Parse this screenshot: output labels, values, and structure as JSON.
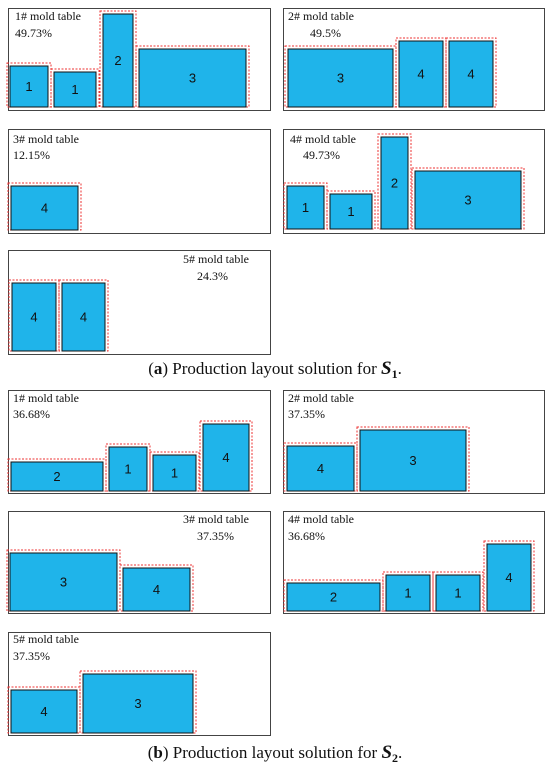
{
  "sections": [
    {
      "panels": [
        {
          "title": "1# mold table",
          "percent": "49.73%",
          "blocks": [
            {
              "label": "1"
            },
            {
              "label": "1"
            },
            {
              "label": "2"
            },
            {
              "label": "3"
            }
          ]
        },
        {
          "title": "2# mold table",
          "percent": "49.5%",
          "blocks": [
            {
              "label": "3"
            },
            {
              "label": "4"
            },
            {
              "label": "4"
            }
          ]
        },
        {
          "title": "3# mold table",
          "percent": "12.15%",
          "blocks": [
            {
              "label": "4"
            }
          ]
        },
        {
          "title": "4# mold table",
          "percent": "49.73%",
          "blocks": [
            {
              "label": "1"
            },
            {
              "label": "1"
            },
            {
              "label": "2"
            },
            {
              "label": "3"
            }
          ]
        },
        {
          "title": "5# mold table",
          "percent": "24.3%",
          "blocks": [
            {
              "label": "4"
            },
            {
              "label": "4"
            }
          ]
        }
      ],
      "caption": [
        "(",
        "a",
        ") Production layout solution for ",
        "S",
        "1",
        "."
      ]
    },
    {
      "panels": [
        {
          "title": "1# mold table",
          "percent": "36.68%",
          "blocks": [
            {
              "label": "2"
            },
            {
              "label": "1"
            },
            {
              "label": "1"
            },
            {
              "label": "4"
            }
          ]
        },
        {
          "title": "2# mold table",
          "percent": "37.35%",
          "blocks": [
            {
              "label": "4"
            },
            {
              "label": "3"
            }
          ]
        },
        {
          "title": "3# mold table",
          "percent": "37.35%",
          "blocks": [
            {
              "label": "3"
            },
            {
              "label": "4"
            }
          ]
        },
        {
          "title": "4# mold table",
          "percent": "36.68%",
          "blocks": [
            {
              "label": "2"
            },
            {
              "label": "1"
            },
            {
              "label": "1"
            },
            {
              "label": "4"
            }
          ]
        },
        {
          "title": "5# mold table",
          "percent": "37.35%",
          "blocks": [
            {
              "label": "4"
            },
            {
              "label": "3"
            }
          ]
        }
      ],
      "caption": [
        "(",
        "b",
        ") Production layout solution for ",
        "S",
        "2",
        "."
      ]
    }
  ]
}
